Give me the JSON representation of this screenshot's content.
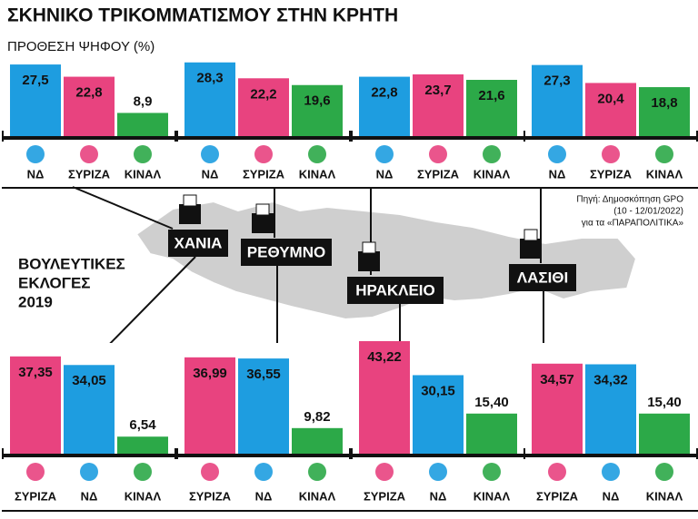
{
  "header": {
    "title": "ΣΚΗΝΙΚΟ ΤΡΙΚΟΜΜΑΤΙΣΜΟΥ ΣΤΗΝ ΚΡΗΤΗ",
    "subtitle": "ΠΡΟΘΕΣΗ ΨΗΦΟΥ (%)"
  },
  "map": {
    "regions": [
      "ΧΑΝΙΑ",
      "ΡΕΘΥΜΝΟ",
      "ΗΡΑΚΛΕΙΟ",
      "ΛΑΣΙΘΙ"
    ],
    "elections": [
      "ΒΟΥΛΕΥΤΙΚΕΣ",
      "ΕΚΛΟΓΕΣ",
      "2019"
    ],
    "source": [
      "Πηγή: Δημοσκόπηση GPO",
      "(10 - 12/01/2022)",
      "για τα «ΠΑΡΑΠΟΛΙΤΙΚΑ»"
    ]
  },
  "chart_data": [
    {
      "type": "bar",
      "categories": [
        "ΝΔ",
        "ΣΥΡΙΖΑ",
        "ΚΙΝΑΛ"
      ],
      "values": [
        27.5,
        22.8,
        8.9
      ],
      "value_labels": [
        "27,5",
        "22,8",
        "8,9"
      ],
      "colors": [
        "#1e9de0",
        "#e8437f",
        "#2ca948"
      ]
    },
    {
      "type": "bar",
      "categories": [
        "ΝΔ",
        "ΣΥΡΙΖΑ",
        "ΚΙΝΑΛ"
      ],
      "values": [
        28.3,
        22.2,
        19.6
      ],
      "value_labels": [
        "28,3",
        "22,2",
        "19,6"
      ],
      "colors": [
        "#1e9de0",
        "#e8437f",
        "#2ca948"
      ]
    },
    {
      "type": "bar",
      "categories": [
        "ΝΔ",
        "ΣΥΡΙΖΑ",
        "ΚΙΝΑΛ"
      ],
      "values": [
        22.8,
        23.7,
        21.6
      ],
      "value_labels": [
        "22,8",
        "23,7",
        "21,6"
      ],
      "colors": [
        "#1e9de0",
        "#e8437f",
        "#2ca948"
      ]
    },
    {
      "type": "bar",
      "categories": [
        "ΝΔ",
        "ΣΥΡΙΖΑ",
        "ΚΙΝΑΛ"
      ],
      "values": [
        27.3,
        20.4,
        18.8
      ],
      "value_labels": [
        "27,3",
        "20,4",
        "18,8"
      ],
      "colors": [
        "#1e9de0",
        "#e8437f",
        "#2ca948"
      ]
    },
    {
      "type": "bar",
      "categories": [
        "ΣΥΡΙΖΑ",
        "ΝΔ",
        "ΚΙΝΑΛ"
      ],
      "values": [
        37.35,
        34.05,
        6.54
      ],
      "value_labels": [
        "37,35",
        "34,05",
        "6,54"
      ],
      "colors": [
        "#e8437f",
        "#1e9de0",
        "#2ca948"
      ]
    },
    {
      "type": "bar",
      "categories": [
        "ΣΥΡΙΖΑ",
        "ΝΔ",
        "ΚΙΝΑΛ"
      ],
      "values": [
        36.99,
        36.55,
        9.82
      ],
      "value_labels": [
        "36,99",
        "36,55",
        "9,82"
      ],
      "colors": [
        "#e8437f",
        "#1e9de0",
        "#2ca948"
      ]
    },
    {
      "type": "bar",
      "categories": [
        "ΣΥΡΙΖΑ",
        "ΝΔ",
        "ΚΙΝΑΛ"
      ],
      "values": [
        43.22,
        30.15,
        15.4
      ],
      "value_labels": [
        "43,22",
        "30,15",
        "15,40"
      ],
      "colors": [
        "#e8437f",
        "#1e9de0",
        "#2ca948"
      ]
    },
    {
      "type": "bar",
      "categories": [
        "ΣΥΡΙΖΑ",
        "ΝΔ",
        "ΚΙΝΑΛ"
      ],
      "values": [
        34.57,
        34.32,
        15.4
      ],
      "value_labels": [
        "34,57",
        "34,32",
        "15,40"
      ],
      "colors": [
        "#e8437f",
        "#1e9de0",
        "#2ca948"
      ]
    }
  ]
}
